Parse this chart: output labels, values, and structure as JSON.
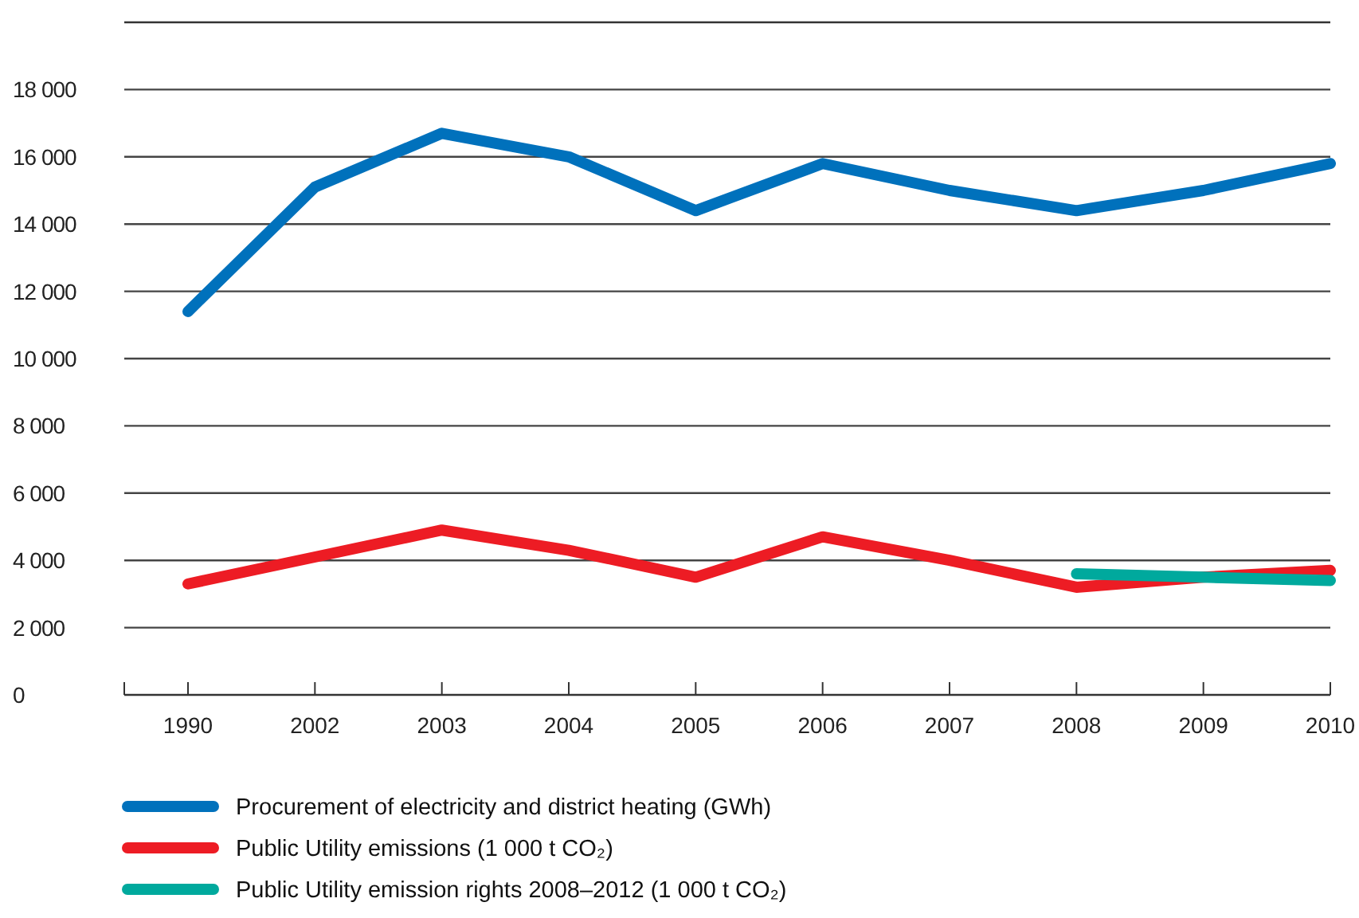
{
  "chart_data": {
    "type": "line",
    "categories": [
      "1990",
      "2002",
      "2003",
      "2004",
      "2005",
      "2006",
      "2007",
      "2008",
      "2009",
      "2010"
    ],
    "series": [
      {
        "name": "Procurement of electricity and district heating  (GWh)",
        "color": "#0071bc",
        "values": [
          11400,
          15100,
          16700,
          16000,
          14400,
          15800,
          15000,
          14400,
          15000,
          15800
        ]
      },
      {
        "name": "Public Utility emissions (1 000 t CO₂)",
        "color": "#ed1c24",
        "values": [
          3300,
          4100,
          4900,
          4300,
          3500,
          4700,
          4000,
          3200,
          3500,
          3700
        ]
      },
      {
        "name": "Public Utility emission rights 2008–2012 (1 000 t CO₂)",
        "color": "#00a99d",
        "values": [
          null,
          null,
          null,
          null,
          null,
          null,
          null,
          3600,
          3500,
          3400
        ]
      }
    ],
    "ylim": [
      0,
      20000
    ],
    "yticks": [
      {
        "value": 0,
        "label": "0"
      },
      {
        "value": 2000,
        "label": "2 000"
      },
      {
        "value": 4000,
        "label": "4 000"
      },
      {
        "value": 6000,
        "label": "6 000"
      },
      {
        "value": 8000,
        "label": "8 000"
      },
      {
        "value": 10000,
        "label": "10 000"
      },
      {
        "value": 12000,
        "label": "12 000"
      },
      {
        "value": 14000,
        "label": "14 000"
      },
      {
        "value": 16000,
        "label": "16 000"
      },
      {
        "value": 18000,
        "label": "18 000"
      }
    ],
    "grid": "y",
    "legend": "bottom",
    "line_style": "solid",
    "marker": "none"
  }
}
